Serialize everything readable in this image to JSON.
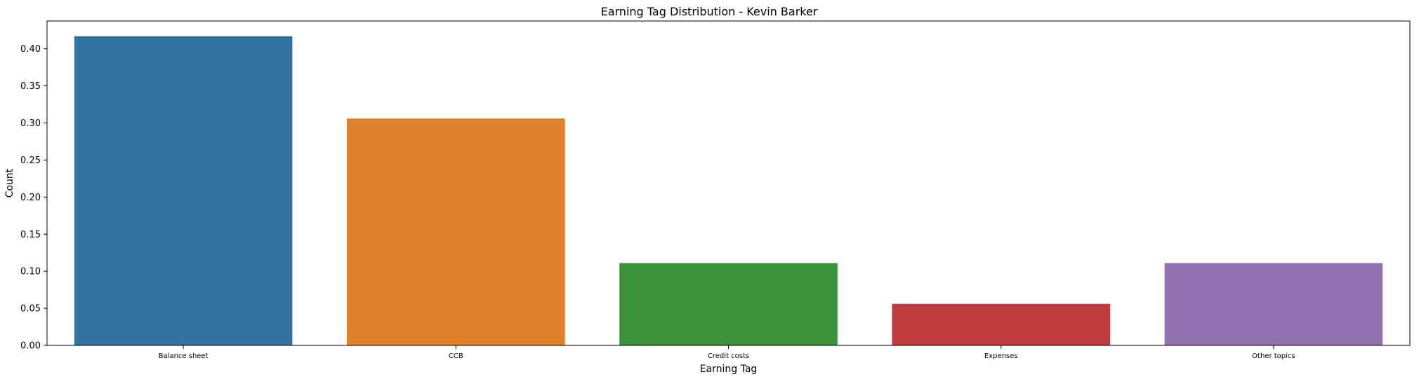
{
  "chart_data": {
    "type": "bar",
    "title": "Earning Tag Distribution - Kevin Barker",
    "xlabel": "Earning Tag",
    "ylabel": "Count",
    "categories": [
      "Balance sheet",
      "CCB",
      "Credit costs",
      "Expenses",
      "Other topics"
    ],
    "values": [
      0.417,
      0.306,
      0.111,
      0.056,
      0.111
    ],
    "colors": [
      "#3274a1",
      "#e1812c",
      "#3a923a",
      "#c03d3e",
      "#9372b2"
    ],
    "ylim": [
      0,
      0.4375
    ],
    "yticks": [
      "0.00",
      "0.05",
      "0.10",
      "0.15",
      "0.20",
      "0.25",
      "0.30",
      "0.35",
      "0.40"
    ],
    "grid": false,
    "legend": "none"
  }
}
